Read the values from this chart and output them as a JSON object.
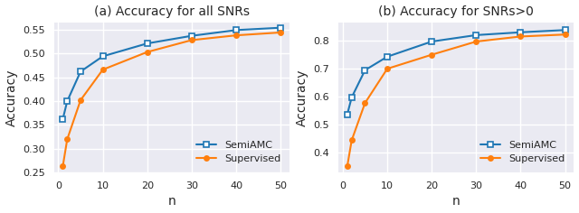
{
  "x": [
    1,
    2,
    5,
    10,
    20,
    30,
    40,
    50
  ],
  "plot_a": {
    "title": "(a) Accuracy for all SNRs",
    "semi_amc": [
      0.362,
      0.4,
      0.462,
      0.494,
      0.521,
      0.537,
      0.549,
      0.554
    ],
    "supervised": [
      0.263,
      0.32,
      0.402,
      0.466,
      0.503,
      0.528,
      0.538,
      0.544
    ],
    "ylim": [
      0.25,
      0.565
    ],
    "yticks": [
      0.25,
      0.3,
      0.35,
      0.4,
      0.45,
      0.5,
      0.55
    ]
  },
  "plot_b": {
    "title": "(b) Accuracy for SNRs>0",
    "semi_amc": [
      0.537,
      0.598,
      0.695,
      0.743,
      0.797,
      0.82,
      0.83,
      0.838
    ],
    "supervised": [
      0.352,
      0.445,
      0.578,
      0.7,
      0.75,
      0.797,
      0.815,
      0.822
    ],
    "ylim": [
      0.33,
      0.865
    ],
    "yticks": [
      0.4,
      0.5,
      0.6,
      0.7,
      0.8
    ]
  },
  "semi_amc_color": "#1f77b4",
  "supervised_color": "#ff7f0e",
  "semi_amc_label": "SemiAMC",
  "supervised_label": "Supervised",
  "xlabel": "n",
  "xticks": [
    0,
    10,
    20,
    30,
    40,
    50
  ],
  "bg_color": "#eaeaf2",
  "grid_color": "white"
}
